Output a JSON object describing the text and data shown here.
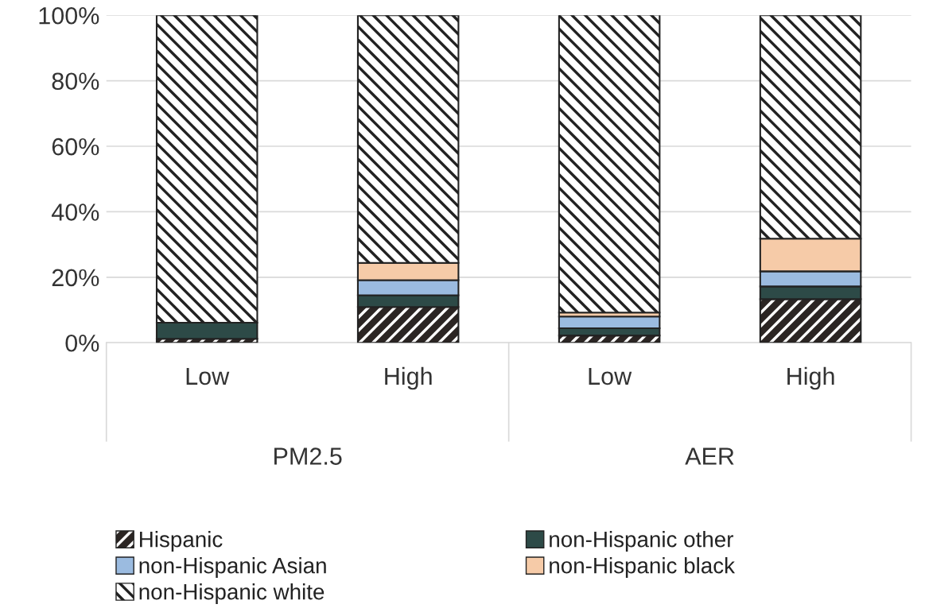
{
  "chart_data": {
    "type": "bar",
    "stacked": true,
    "categories": [
      "Low",
      "High",
      "Low",
      "High"
    ],
    "series": [
      {
        "name": "Hispanic",
        "color": "#2b2523",
        "values": [
          1.2,
          10.9,
          2.2,
          13.3
        ]
      },
      {
        "name": "non-Hispanic other",
        "color": "#2d4a47",
        "values": [
          4.9,
          3.6,
          2.2,
          3.9
        ]
      },
      {
        "name": "non-Hispanic Asian",
        "color": "#9bbbe0",
        "values": [
          null,
          4.6,
          3.6,
          4.6
        ]
      },
      {
        "name": "non-Hispanic black",
        "color": "#f6cba8",
        "values": [
          null,
          5.3,
          1.2,
          10.0
        ]
      },
      {
        "name": "non-Hispanic white",
        "color": "#222222",
        "values": [
          93.9,
          75.6,
          91.0,
          68.2
        ]
      }
    ],
    "ylim": [
      0,
      100
    ],
    "yticks": [
      {
        "value": 0,
        "label": "0%"
      },
      {
        "value": 20,
        "label": "20%"
      },
      {
        "value": 40,
        "label": "40%"
      },
      {
        "value": 60,
        "label": "60%"
      },
      {
        "value": 80,
        "label": "80%"
      },
      {
        "value": 100,
        "label": "100%"
      }
    ],
    "grid": "y",
    "legend": "bottom",
    "annotations": [
      "PM2.5",
      "AER"
    ]
  }
}
